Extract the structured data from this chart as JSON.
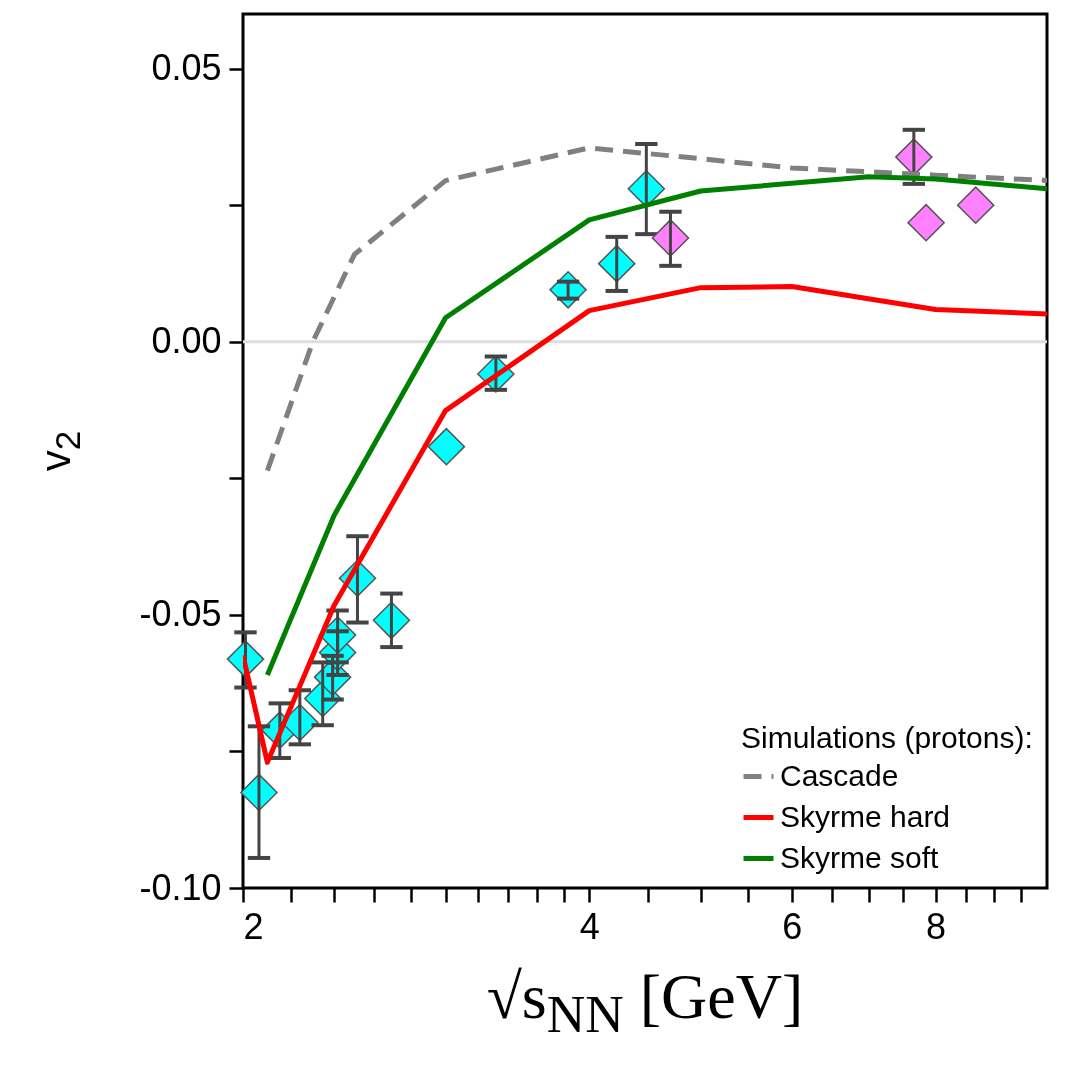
{
  "chart_data": {
    "type": "scatter",
    "xlabel": "√s$_{NN}$ [GeV]",
    "ylabel": "v$_{2}$",
    "legend_title": "Simulations (protons):",
    "log": "x",
    "xlim": [
      2,
      10
    ],
    "ylim": [
      -0.1,
      0.06
    ],
    "xticks": [
      2,
      {
        "value": 2.2,
        "label": null
      },
      {
        "value": 2.4,
        "label": null
      },
      {
        "value": 2.6,
        "label": null
      },
      {
        "value": 2.8,
        "label": null
      },
      {
        "value": 3,
        "label": null
      },
      {
        "value": 3.2,
        "label": null
      },
      {
        "value": 3.4,
        "label": null
      },
      {
        "value": 3.6,
        "label": null
      },
      {
        "value": 3.8,
        "label": null
      },
      4,
      {
        "value": 4.5,
        "label": null
      },
      {
        "value": 5,
        "label": null
      },
      {
        "value": 5.5,
        "label": null
      },
      6,
      {
        "value": 6.5,
        "label": null
      },
      {
        "value": 7,
        "label": null
      },
      {
        "value": 7.5,
        "label": null
      },
      8,
      {
        "value": 8.5,
        "label": null
      },
      {
        "value": 9,
        "label": null
      },
      {
        "value": 9.5,
        "label": null
      }
    ],
    "yticks": [
      {
        "value": -0.1,
        "label": "-0.10"
      },
      {
        "value": -0.075,
        "label": null
      },
      {
        "value": -0.05,
        "label": "-0.05"
      },
      {
        "value": -0.025,
        "label": null
      },
      {
        "value": 0,
        "label": "0.00"
      },
      {
        "value": 0.025,
        "label": null
      },
      {
        "value": 0.05,
        "label": "0.05"
      }
    ],
    "grid": false,
    "legend": "bottom right",
    "marker": "diamond",
    "ref_lines": [
      {
        "axis": "y",
        "value": 0,
        "color": "#dddddd"
      }
    ],
    "series": [
      {
        "type": "line",
        "name": "Cascade",
        "color": "#808080",
        "line_style": "dashed",
        "marker": "none",
        "x": [
          2.1,
          2.3,
          2.5,
          3.0,
          4.0,
          5.0,
          6.0,
          8.0,
          10.0
        ],
        "values": [
          -0.0236,
          0.0,
          0.016,
          0.0295,
          0.0355,
          0.0335,
          0.0318,
          0.0305,
          0.0295
        ]
      },
      {
        "type": "line",
        "name": "Skyrme hard",
        "color": "#ff0000",
        "line_style": "solid",
        "marker": "none",
        "x": [
          2.0,
          2.1,
          2.4,
          3.0,
          4.0,
          5.0,
          6.0,
          8.0,
          10.0
        ],
        "values": [
          -0.0574,
          -0.077,
          -0.0483,
          -0.0126,
          0.0057,
          0.0099,
          0.0101,
          0.0059,
          0.0051
        ]
      },
      {
        "type": "line",
        "name": "Skyrme soft",
        "color": "#008000",
        "line_style": "solid",
        "marker": "none",
        "x": [
          2.1,
          2.4,
          3.0,
          4.0,
          5.0,
          7.0,
          8.0,
          10.0
        ],
        "values": [
          -0.061,
          -0.0318,
          0.0044,
          0.0223,
          0.0276,
          0.0302,
          0.0298,
          0.028
        ]
      },
      {
        "color": "#00ffff",
        "x": [
          2.01,
          2.065,
          2.153,
          2.241,
          2.346,
          2.393,
          2.417,
          2.417,
          2.515,
          2.692,
          3.005,
          3.318,
          3.834,
          4.226,
          4.484
        ],
        "values": [
          -0.0581,
          -0.0825,
          -0.0711,
          -0.0697,
          -0.0653,
          -0.0614,
          -0.0569,
          -0.0537,
          -0.0433,
          -0.051,
          -0.0192,
          -0.0059,
          0.0095,
          0.0143,
          0.028
        ],
        "errors": [
          [
            -0.0633,
            -0.0532
          ],
          [
            -0.0945,
            -0.0704
          ],
          [
            -0.0762,
            -0.0662
          ],
          [
            -0.0737,
            -0.0638
          ],
          [
            -0.0702,
            -0.0587
          ],
          [
            -0.0655,
            -0.0575
          ],
          [
            -0.061,
            -0.053
          ],
          [
            -0.0587,
            -0.0492
          ],
          [
            -0.0514,
            -0.0356
          ],
          [
            -0.0559,
            -0.0461
          ],
          null,
          [
            -0.0088,
            -0.0027
          ],
          [
            0.0079,
            0.011
          ],
          [
            0.0093,
            0.0192
          ],
          [
            0.0197,
            0.0362
          ]
        ]
      },
      {
        "color": "#ff80ff",
        "x": [
          4.706,
          7.66,
          7.85,
          8.67
        ],
        "values": [
          0.019,
          0.0338,
          0.0218,
          0.025
        ],
        "errors": [
          [
            0.0139,
            0.0238
          ],
          [
            0.0289,
            0.0388
          ],
          null,
          null
        ]
      }
    ]
  }
}
